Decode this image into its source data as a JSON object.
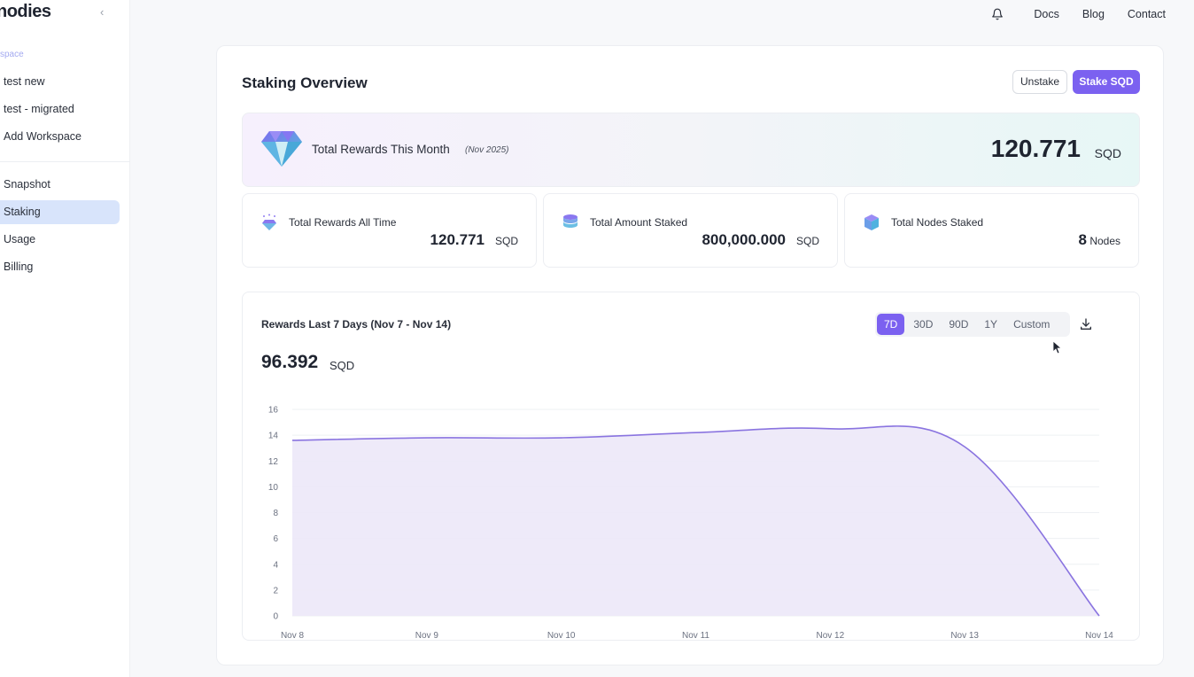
{
  "app": {
    "logo": "nodies"
  },
  "sidebar": {
    "workspace_label": "space",
    "workspaces": [
      "test new",
      "test - migrated",
      "Add Workspace"
    ],
    "nav": [
      "Snapshot",
      "Staking",
      "Usage",
      "Billing"
    ],
    "active_nav": "Staking"
  },
  "topnav": {
    "links": [
      "Docs",
      "Blog",
      "Contact"
    ]
  },
  "page": {
    "title": "Staking Overview",
    "unstake_label": "Unstake",
    "stake_label": "Stake SQD"
  },
  "banner": {
    "label": "Total Rewards This Month",
    "period": "(Nov 2025)",
    "value": "120.771",
    "unit": "SQD"
  },
  "stats": [
    {
      "label": "Total Rewards All Time",
      "value": "120.771",
      "unit": "SQD",
      "icon": "gem-icon"
    },
    {
      "label": "Total Amount Staked",
      "value": "800,000.000",
      "unit": "SQD",
      "icon": "database-icon"
    },
    {
      "label": "Total Nodes Staked",
      "value": "8",
      "unit": "Nodes",
      "icon": "cube-icon"
    }
  ],
  "chart_card": {
    "title": "Rewards Last 7 Days (Nov 7 - Nov 14)",
    "total": "96.392",
    "total_unit": "SQD",
    "ranges": [
      "7D",
      "30D",
      "90D",
      "1Y",
      "Custom"
    ],
    "active_range": "7D"
  },
  "colors": {
    "accent": "#7b61f0",
    "area_fill": "#ece8f8",
    "line": "#8a74e0"
  },
  "chart_data": {
    "type": "area",
    "title": "",
    "xlabel": "",
    "ylabel": "",
    "x": [
      "Nov 8",
      "Nov 9",
      "Nov 10",
      "Nov 11",
      "Nov 12",
      "Nov 13",
      "Nov 14"
    ],
    "series": [
      {
        "name": "Rewards",
        "values": [
          13.6,
          13.8,
          13.8,
          14.2,
          14.5,
          13.1,
          0
        ]
      }
    ],
    "yticks": [
      0,
      2,
      4,
      6,
      8,
      10,
      12,
      14,
      16
    ],
    "ylim": [
      0,
      16
    ],
    "grid": true
  }
}
